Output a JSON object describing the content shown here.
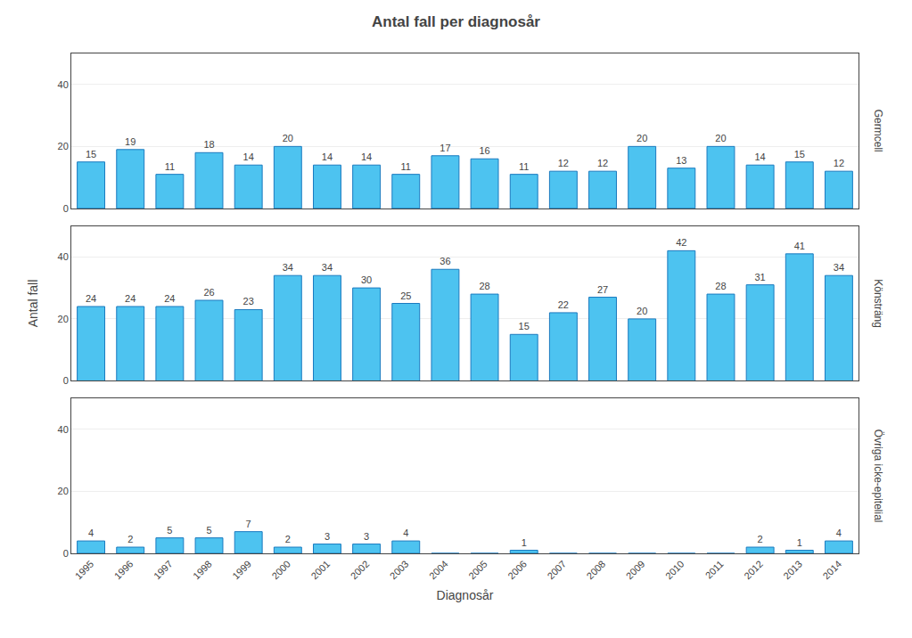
{
  "chart_data": [
    {
      "type": "bar",
      "title": "Antal fall per diagnosår",
      "annotations": [
        "Germcell"
      ],
      "categories": [
        "1995",
        "1996",
        "1997",
        "1998",
        "1999",
        "2000",
        "2001",
        "2002",
        "2003",
        "2004",
        "2005",
        "2006",
        "2007",
        "2008",
        "2009",
        "2010",
        "2011",
        "2012",
        "2013",
        "2014"
      ],
      "values": [
        15,
        19,
        11,
        18,
        14,
        20,
        14,
        14,
        11,
        17,
        16,
        11,
        12,
        12,
        20,
        13,
        20,
        14,
        15,
        12
      ],
      "value_labels": [
        "15",
        "19",
        "11",
        "18",
        "14",
        "20",
        "14",
        "14",
        "11",
        "17",
        "16",
        "11",
        "12",
        "12",
        "20",
        "13",
        "20",
        "14",
        "15",
        "12"
      ],
      "color": "#4DC3F0",
      "ylim": [
        0,
        50
      ],
      "yticks": [
        0,
        20,
        40
      ],
      "grid": true,
      "data_labels": true,
      "tick_labels": "y"
    },
    {
      "type": "bar",
      "ylabel": "Antal fall",
      "annotations": [
        "Könsträng"
      ],
      "categories": [
        "1995",
        "1996",
        "1997",
        "1998",
        "1999",
        "2000",
        "2001",
        "2002",
        "2003",
        "2004",
        "2005",
        "2006",
        "2007",
        "2008",
        "2009",
        "2010",
        "2011",
        "2012",
        "2013",
        "2014"
      ],
      "values": [
        24,
        24,
        24,
        26,
        23,
        34,
        34,
        30,
        25,
        36,
        28,
        15,
        22,
        27,
        20,
        42,
        28,
        31,
        41,
        34
      ],
      "value_labels": [
        "24",
        "24",
        "24",
        "26",
        "23",
        "34",
        "34",
        "30",
        "25",
        "36",
        "28",
        "15",
        "22",
        "27",
        "20",
        "42",
        "28",
        "31",
        "41",
        "34"
      ],
      "color": "#4DC3F0",
      "ylim": [
        0,
        50
      ],
      "yticks": [
        0,
        20,
        40
      ],
      "grid": true,
      "data_labels": true,
      "tick_labels": "y"
    },
    {
      "type": "bar",
      "xlabel": "Diagnosår",
      "annotations": [
        "Övriga icke-epitelial"
      ],
      "categories": [
        "1995",
        "1996",
        "1997",
        "1998",
        "1999",
        "2000",
        "2001",
        "2002",
        "2003",
        "2004",
        "2005",
        "2006",
        "2007",
        "2008",
        "2009",
        "2010",
        "2011",
        "2012",
        "2013",
        "2014"
      ],
      "values": [
        4,
        2,
        5,
        5,
        7,
        2,
        3,
        3,
        4,
        0,
        0,
        1,
        0,
        0,
        0,
        0,
        0,
        2,
        1,
        4
      ],
      "value_labels": [
        "4",
        "2",
        "5",
        "5",
        "7",
        "2",
        "3",
        "3",
        "4",
        null,
        null,
        "1",
        null,
        null,
        null,
        null,
        null,
        "2",
        "1",
        "4"
      ],
      "color": "#4DC3F0",
      "ylim": [
        0,
        50
      ],
      "yticks": [
        0,
        20,
        40
      ],
      "grid": true,
      "data_labels": true
    }
  ]
}
